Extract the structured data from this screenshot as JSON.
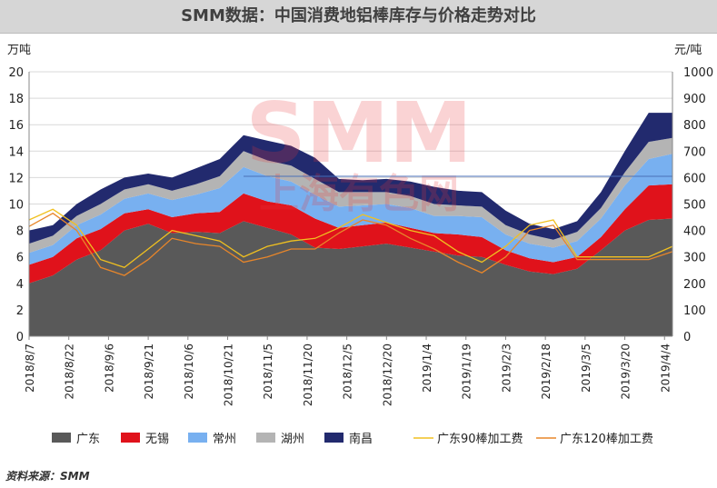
{
  "title": "SMM数据：中国消费地铝棒库存与价格走势对比",
  "source": "资料来源：SMM",
  "watermark": {
    "main": "SMM",
    "sub": "上海有色网",
    "color": "#e8383d"
  },
  "chart_data": {
    "type": "area",
    "stacked": true,
    "y_left": {
      "unit": "万吨",
      "range": [
        0,
        20
      ],
      "ticks": [
        "0",
        "2",
        "4",
        "6",
        "8",
        "10",
        "12",
        "14",
        "16",
        "18",
        "20"
      ]
    },
    "y_right": {
      "unit": "元/吨",
      "range": [
        0,
        1000
      ],
      "ticks": [
        "0",
        "100",
        "200",
        "300",
        "400",
        "500",
        "600",
        "700",
        "800",
        "900",
        "1000"
      ]
    },
    "x_ticks": [
      "2018/8/7",
      "2018/8/22",
      "2018/9/6",
      "2018/9/21",
      "2018/10/6",
      "2018/10/21",
      "2018/11/5",
      "2018/11/20",
      "2018/12/5",
      "2018/12/20",
      "2019/1/4",
      "2019/1/19",
      "2019/2/3",
      "2019/2/18",
      "2019/3/5",
      "2019/3/20",
      "2019/4/4"
    ],
    "x_tick_index": [
      0,
      5,
      10,
      15,
      20,
      25,
      30,
      35,
      40,
      45,
      50,
      55,
      60,
      65,
      70,
      75,
      80
    ],
    "x": [
      0,
      3,
      6,
      9,
      12,
      15,
      18,
      21,
      24,
      27,
      30,
      33,
      36,
      39,
      42,
      45,
      48,
      51,
      54,
      57,
      60,
      63,
      66,
      69,
      72,
      75,
      78,
      81
    ],
    "grid": true,
    "series": [
      {
        "name": "广东",
        "type": "area",
        "axis": "left",
        "color": "#595959",
        "values": [
          4.0,
          4.6,
          5.8,
          6.5,
          8.0,
          8.5,
          7.8,
          7.9,
          7.8,
          8.7,
          8.2,
          7.7,
          6.7,
          6.6,
          6.8,
          7.0,
          6.7,
          6.4,
          6.1,
          6.0,
          5.4,
          4.9,
          4.7,
          5.1,
          6.5,
          8.0,
          8.8,
          8.9
        ]
      },
      {
        "name": "无锡",
        "type": "area",
        "axis": "left",
        "color": "#e0121b",
        "values": [
          1.4,
          1.4,
          1.6,
          1.6,
          1.3,
          1.1,
          1.2,
          1.4,
          1.6,
          2.1,
          2.0,
          2.2,
          2.2,
          1.6,
          1.6,
          1.6,
          1.5,
          1.4,
          1.6,
          1.5,
          1.1,
          1.0,
          0.9,
          0.9,
          1.0,
          1.6,
          2.6,
          2.6
        ]
      },
      {
        "name": "常州",
        "type": "area",
        "axis": "left",
        "color": "#78b0f0",
        "values": [
          0.9,
          0.9,
          1.0,
          1.1,
          1.1,
          1.2,
          1.3,
          1.4,
          1.8,
          2.0,
          1.9,
          1.8,
          1.8,
          1.6,
          1.5,
          1.4,
          1.5,
          1.3,
          1.4,
          1.5,
          1.2,
          1.1,
          1.1,
          1.2,
          1.4,
          1.8,
          2.0,
          2.3
        ]
      },
      {
        "name": "湖州",
        "type": "area",
        "axis": "left",
        "color": "#b4b4b4",
        "values": [
          0.7,
          0.7,
          0.7,
          0.8,
          0.7,
          0.7,
          0.7,
          0.8,
          0.9,
          1.2,
          1.2,
          1.2,
          1.2,
          1.1,
          1.0,
          0.9,
          0.9,
          0.9,
          0.8,
          0.8,
          0.7,
          0.7,
          0.6,
          0.7,
          0.8,
          1.0,
          1.3,
          1.2
        ]
      },
      {
        "name": "南昌",
        "type": "area",
        "axis": "left",
        "color": "#222a6e",
        "values": [
          1.0,
          0.8,
          0.9,
          1.1,
          0.9,
          0.8,
          1.0,
          1.2,
          1.3,
          1.2,
          1.5,
          1.5,
          1.6,
          1.0,
          0.9,
          1.0,
          1.1,
          1.3,
          1.1,
          1.1,
          1.1,
          0.8,
          0.8,
          0.8,
          1.2,
          1.6,
          2.2,
          1.9
        ]
      },
      {
        "name": "广东90棒加工费",
        "type": "line",
        "axis": "right",
        "color": "#f0c020",
        "values": [
          440,
          480,
          420,
          290,
          260,
          330,
          400,
          380,
          360,
          300,
          340,
          360,
          370,
          410,
          460,
          430,
          400,
          380,
          320,
          280,
          340,
          420,
          440,
          300,
          300,
          300,
          300,
          340
        ]
      },
      {
        "name": "广东120棒加工费",
        "type": "line",
        "axis": "right",
        "color": "#e8862a",
        "values": [
          415,
          465,
          400,
          260,
          230,
          290,
          370,
          350,
          340,
          280,
          300,
          330,
          330,
          390,
          440,
          420,
          370,
          330,
          280,
          240,
          300,
          400,
          420,
          290,
          290,
          290,
          290,
          320
        ]
      }
    ],
    "reference_line": {
      "axis": "right",
      "value": 605,
      "color": "#4a6fb8"
    }
  }
}
